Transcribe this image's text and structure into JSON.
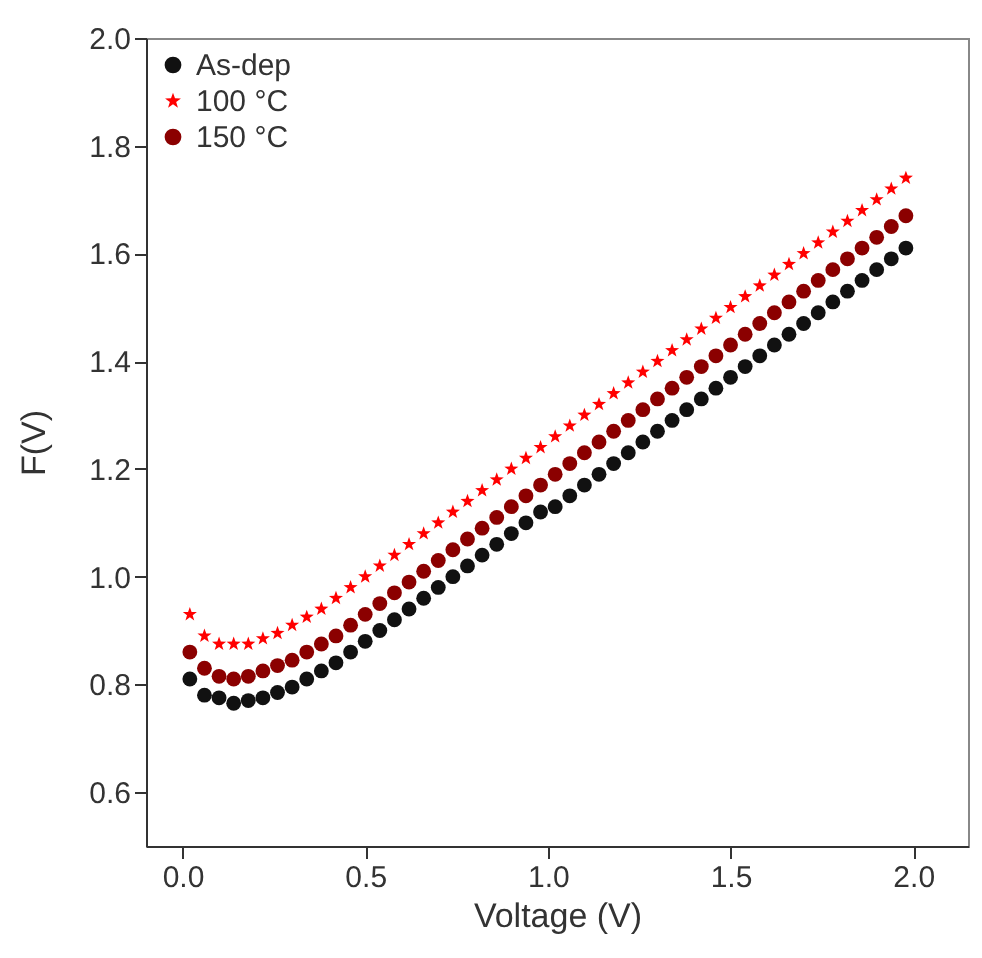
{
  "chart_data": {
    "type": "scatter",
    "xlabel": "Voltage (V)",
    "ylabel": "F(V)",
    "x": [
      0.02,
      0.06,
      0.1,
      0.14,
      0.18,
      0.22,
      0.26,
      0.3,
      0.34,
      0.38,
      0.42,
      0.46,
      0.5,
      0.54,
      0.58,
      0.62,
      0.66,
      0.7,
      0.74,
      0.78,
      0.82,
      0.86,
      0.9,
      0.94,
      0.98,
      1.02,
      1.06,
      1.1,
      1.14,
      1.18,
      1.22,
      1.26,
      1.3,
      1.34,
      1.38,
      1.42,
      1.46,
      1.5,
      1.54,
      1.58,
      1.62,
      1.66,
      1.7,
      1.74,
      1.78,
      1.82,
      1.86,
      1.9,
      1.94,
      1.98
    ],
    "series": [
      {
        "name": "As-dep",
        "color": "#111111",
        "marker": "circle",
        "values": [
          0.81,
          0.78,
          0.775,
          0.765,
          0.77,
          0.775,
          0.785,
          0.795,
          0.81,
          0.825,
          0.84,
          0.86,
          0.88,
          0.9,
          0.92,
          0.94,
          0.96,
          0.98,
          1.0,
          1.02,
          1.04,
          1.06,
          1.08,
          1.1,
          1.12,
          1.13,
          1.15,
          1.17,
          1.19,
          1.21,
          1.23,
          1.25,
          1.27,
          1.29,
          1.31,
          1.33,
          1.35,
          1.37,
          1.39,
          1.41,
          1.43,
          1.45,
          1.47,
          1.49,
          1.51,
          1.53,
          1.55,
          1.57,
          1.59,
          1.61
        ]
      },
      {
        "name": "100 °C",
        "color": "#ff0000",
        "marker": "star",
        "values": [
          0.93,
          0.89,
          0.875,
          0.875,
          0.875,
          0.885,
          0.895,
          0.91,
          0.925,
          0.94,
          0.96,
          0.98,
          1.0,
          1.02,
          1.04,
          1.06,
          1.08,
          1.1,
          1.12,
          1.14,
          1.16,
          1.18,
          1.2,
          1.22,
          1.24,
          1.26,
          1.28,
          1.3,
          1.32,
          1.34,
          1.36,
          1.38,
          1.4,
          1.42,
          1.44,
          1.46,
          1.48,
          1.5,
          1.52,
          1.54,
          1.56,
          1.58,
          1.6,
          1.62,
          1.64,
          1.66,
          1.68,
          1.7,
          1.72,
          1.74
        ]
      },
      {
        "name": "150 °C",
        "color": "#8b0000",
        "marker": "circle",
        "values": [
          0.86,
          0.83,
          0.815,
          0.81,
          0.815,
          0.825,
          0.835,
          0.845,
          0.86,
          0.875,
          0.89,
          0.91,
          0.93,
          0.95,
          0.97,
          0.99,
          1.01,
          1.03,
          1.05,
          1.07,
          1.09,
          1.11,
          1.13,
          1.15,
          1.17,
          1.19,
          1.21,
          1.23,
          1.25,
          1.27,
          1.29,
          1.31,
          1.33,
          1.35,
          1.37,
          1.39,
          1.41,
          1.43,
          1.45,
          1.47,
          1.49,
          1.51,
          1.53,
          1.55,
          1.57,
          1.59,
          1.61,
          1.63,
          1.65,
          1.67
        ]
      }
    ],
    "xlim": [
      -0.1,
      2.15
    ],
    "xticks": [
      {
        "value": 0,
        "label": "0.0"
      },
      0.5,
      {
        "value": 1,
        "label": "1.0"
      },
      1.5,
      {
        "value": 2,
        "label": "2.0"
      }
    ],
    "ylim": [
      0.5,
      2.0
    ],
    "yticks": [
      0.6,
      0.8,
      {
        "value": 1,
        "label": "1.0"
      },
      1.2,
      1.4,
      1.6,
      1.8,
      {
        "value": 2,
        "label": "2.0"
      }
    ],
    "legend": "top left"
  }
}
